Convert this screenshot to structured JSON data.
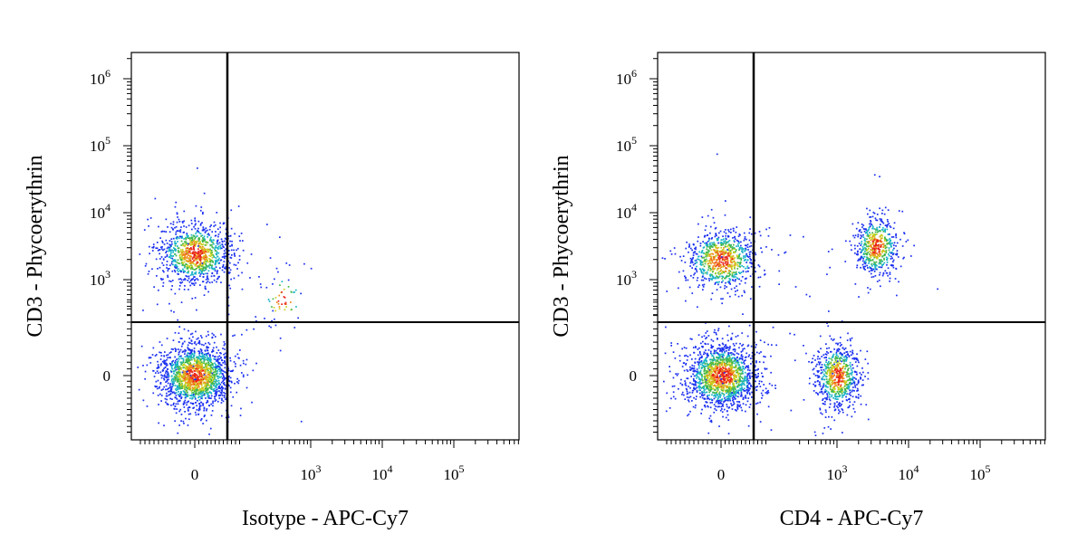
{
  "chart_data": [
    {
      "type": "scatter",
      "xlabel": "Isotype - APC-Cy7",
      "ylabel": "CD3 - Phycoerythrin",
      "x_ticks": [
        {
          "base": "0",
          "exp": ""
        },
        {
          "base": "10",
          "exp": "3"
        },
        {
          "base": "10",
          "exp": "4"
        },
        {
          "base": "10",
          "exp": "5"
        }
      ],
      "y_ticks": [
        {
          "base": "0",
          "exp": ""
        },
        {
          "base": "10",
          "exp": "3"
        },
        {
          "base": "10",
          "exp": "4"
        },
        {
          "base": "10",
          "exp": "5"
        },
        {
          "base": "10",
          "exp": "6"
        }
      ],
      "gate": {
        "x": 200,
        "y": 200
      },
      "populations": [
        {
          "name": "",
          "x_center": 0,
          "y_center": 0,
          "count": 1600
        },
        {
          "name": "",
          "x_center": 0,
          "y_center": 2500,
          "count": 1000
        },
        {
          "name": "",
          "x_center": 400,
          "y_center": 500,
          "count": 60
        }
      ]
    },
    {
      "type": "scatter",
      "xlabel": "CD4 - APC-Cy7",
      "ylabel": "CD3 - Phycoerythrin",
      "x_ticks": [
        {
          "base": "0",
          "exp": ""
        },
        {
          "base": "10",
          "exp": "3"
        },
        {
          "base": "10",
          "exp": "4"
        },
        {
          "base": "10",
          "exp": "5"
        }
      ],
      "y_ticks": [
        {
          "base": "0",
          "exp": ""
        },
        {
          "base": "10",
          "exp": "3"
        },
        {
          "base": "10",
          "exp": "4"
        },
        {
          "base": "10",
          "exp": "5"
        },
        {
          "base": "10",
          "exp": "6"
        }
      ],
      "gate": {
        "x": 200,
        "y": 200
      },
      "populations": [
        {
          "name": "",
          "x_center": 0,
          "y_center": 0,
          "count": 1500
        },
        {
          "name": "",
          "x_center": 0,
          "y_center": 2000,
          "count": 800
        },
        {
          "name": "",
          "x_center": 1000,
          "y_center": 0,
          "count": 700
        },
        {
          "name": "",
          "x_center": 3500,
          "y_center": 3200,
          "count": 550
        }
      ]
    }
  ]
}
